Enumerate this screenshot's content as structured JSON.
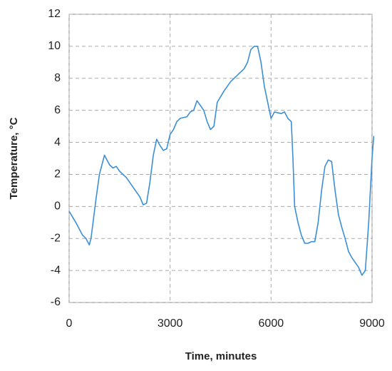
{
  "chart_data": {
    "type": "line",
    "x_label": "Time, minutes",
    "y_label": "Temperature, °C",
    "x": [
      0,
      200,
      400,
      500,
      600,
      650,
      800,
      900,
      1000,
      1050,
      1100,
      1200,
      1300,
      1400,
      1500,
      1700,
      1900,
      2100,
      2200,
      2300,
      2400,
      2500,
      2600,
      2700,
      2800,
      2900,
      3000,
      3100,
      3200,
      3300,
      3500,
      3600,
      3700,
      3800,
      3900,
      4000,
      4100,
      4200,
      4300,
      4400,
      4600,
      4800,
      5000,
      5200,
      5300,
      5400,
      5500,
      5600,
      5700,
      5800,
      5900,
      6000,
      6100,
      6300,
      6400,
      6500,
      6600,
      6650,
      6700,
      6800,
      6900,
      7000,
      7100,
      7200,
      7300,
      7400,
      7500,
      7600,
      7700,
      7800,
      7900,
      8000,
      8100,
      8200,
      8300,
      8400,
      8500,
      8600,
      8700,
      8800,
      8900,
      9000,
      9050
    ],
    "series": [
      {
        "color": "#3b8fd6",
        "values": [
          -0.3,
          -1.0,
          -1.8,
          -2.0,
          -2.4,
          -2.0,
          0.5,
          2.0,
          2.8,
          3.2,
          3.0,
          2.6,
          2.4,
          2.5,
          2.2,
          1.8,
          1.2,
          0.6,
          0.1,
          0.2,
          1.5,
          3.2,
          4.2,
          3.8,
          3.5,
          3.6,
          4.5,
          4.8,
          5.3,
          5.5,
          5.6,
          5.9,
          6.0,
          6.6,
          6.3,
          6.0,
          5.3,
          4.8,
          5.0,
          6.5,
          7.2,
          7.8,
          8.2,
          8.6,
          9.0,
          9.8,
          10.0,
          10.0,
          9.0,
          7.5,
          6.5,
          5.5,
          5.9,
          5.8,
          5.9,
          5.5,
          5.3,
          3.0,
          0,
          -1.0,
          -1.8,
          -2.3,
          -2.3,
          -2.2,
          -2.2,
          -1.0,
          1.0,
          2.5,
          2.9,
          2.8,
          1.0,
          -0.5,
          -1.3,
          -2.0,
          -2.8,
          -3.2,
          -3.5,
          -3.8,
          -4.3,
          -4.0,
          -1.0,
          3.0,
          4.4
        ]
      }
    ],
    "xlim": [
      0,
      9000
    ],
    "xticks": [
      0,
      3000,
      6000,
      9000
    ],
    "ylim": [
      -6,
      12
    ],
    "yticks": [
      -6,
      -4,
      -2,
      0,
      2,
      4,
      6,
      8,
      10,
      12
    ],
    "grid": true
  }
}
